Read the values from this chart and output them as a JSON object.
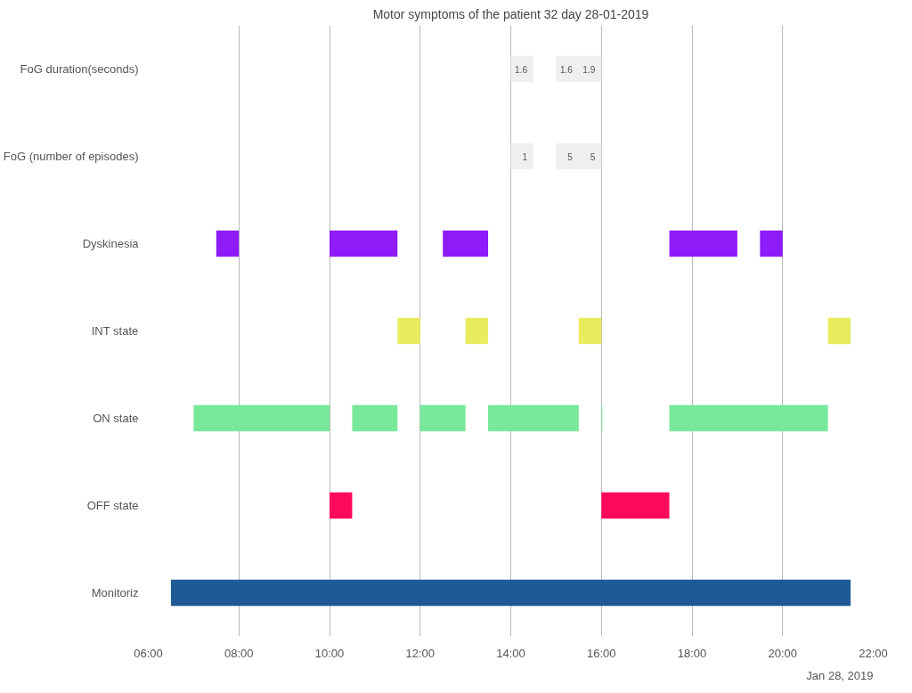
{
  "chart_data": {
    "type": "bar",
    "orientation": "horizontal",
    "title": "Motor symptoms of the patient 32 day 28-01-2019",
    "categories": [
      "FoG duration(seconds)",
      "FoG (number of episodes)",
      "Dyskinesia",
      "INT state",
      "ON state",
      "OFF state",
      "Monitoriz"
    ],
    "series": [
      {
        "colors": [
          "#efefef",
          "#efefef",
          "#8d1cf8",
          "#e8ec5e",
          "#78e89a",
          "#ff0a5a",
          "#1f5a96"
        ],
        "base": [
          14,
          14,
          7.5,
          11.5,
          7,
          10,
          6.5
        ],
        "values": [
          0.5,
          0.5,
          0.5,
          0.5,
          3,
          0.5,
          15
        ]
      },
      {
        "colors": [
          "#efefef",
          "#efefef",
          "#8d1cf8",
          "#e8ec5e",
          "#78e89a",
          "#ff0a5a",
          "#1f5a96"
        ],
        "base": [
          15,
          15,
          10,
          13,
          10.5,
          16,
          null
        ],
        "values": [
          0.5,
          0.5,
          1.5,
          0.5,
          1,
          1.5,
          null
        ]
      },
      {
        "colors": [
          "#efefef",
          "#efefef",
          "#8d1cf8",
          "#e8ec5e",
          "#78e89a",
          "#ff0a5a",
          "#1f5a96"
        ],
        "base": [
          15.5,
          15.5,
          12.5,
          15.5,
          12,
          null,
          null
        ],
        "values": [
          0.5,
          0.5,
          1,
          0.5,
          1,
          null,
          null
        ]
      },
      {
        "colors": [
          "#efefef",
          "#efefef",
          "#8d1cf8",
          "#e8ec5e",
          "#78e89a",
          "#ff0a5a",
          "#1f5a96"
        ],
        "base": [
          null,
          null,
          17.5,
          21,
          13.5,
          null,
          null
        ],
        "values": [
          null,
          null,
          1.5,
          0.5,
          2,
          null,
          null
        ]
      },
      {
        "colors": [
          "#efefef",
          "#efefef",
          "#8d1cf8",
          "#e8ec5e",
          "#78e89a",
          "#ff0a5a",
          "#1f5a96"
        ],
        "base": [
          null,
          null,
          19.5,
          null,
          16,
          null,
          null
        ],
        "values": [
          null,
          null,
          0.5,
          null,
          0.02,
          null,
          null
        ]
      },
      {
        "colors": [
          "#efefef",
          "#efefef",
          "#8d1cf8",
          "#e8ec5e",
          "#78e89a",
          "#ff0a5a",
          "#1f5a96"
        ],
        "base": [
          null,
          null,
          null,
          null,
          17.5,
          null,
          null
        ],
        "values": [
          null,
          null,
          null,
          null,
          3.5,
          null,
          null
        ]
      }
    ],
    "xlim": [
      6,
      22
    ],
    "xticks": [
      {
        "value": 6,
        "label": "06:00"
      },
      {
        "value": 8,
        "label": "08:00"
      },
      {
        "value": 10,
        "label": "10:00"
      },
      {
        "value": 12,
        "label": "12:00"
      },
      {
        "value": 14,
        "label": "14:00"
      },
      {
        "value": 16,
        "label": "16:00"
      },
      {
        "value": 18,
        "label": "18:00"
      },
      {
        "value": 20,
        "label": "20:00"
      },
      {
        "value": 22,
        "label": "22:00"
      }
    ],
    "grid": "x",
    "annotations": [
      {
        "text": "1.6",
        "x": 14.5,
        "y": "FoG duration(seconds)"
      },
      {
        "text": "1.6",
        "x": 15.5,
        "y": "FoG duration(seconds)"
      },
      {
        "text": "1.9",
        "x": 16,
        "y": "FoG duration(seconds)"
      },
      {
        "text": "1",
        "x": 14.5,
        "y": "FoG (number of episodes)"
      },
      {
        "text": "5",
        "x": 15.5,
        "y": "FoG (number of episodes)"
      },
      {
        "text": "5",
        "x": 16,
        "y": "FoG (number of episodes)"
      },
      "Jan 28, 2019"
    ]
  }
}
